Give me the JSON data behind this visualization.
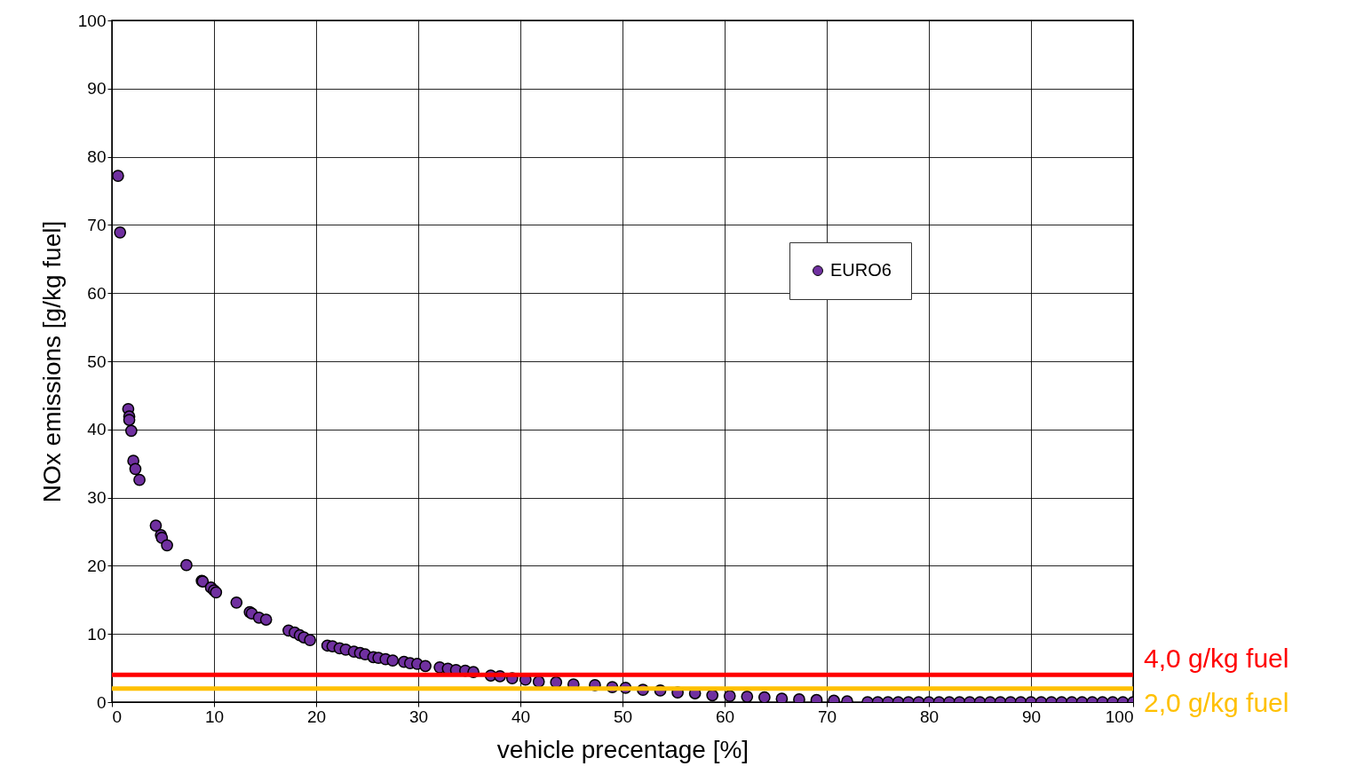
{
  "chart_data": {
    "type": "scatter",
    "xlabel": "vehicle precentage [%]",
    "ylabel": "NOx emissions [g/kg fuel]",
    "x": [
      0.6,
      0.8,
      1.6,
      1.7,
      1.7,
      1.9,
      2.1,
      2.3,
      2.7,
      4.3,
      4.8,
      4.9,
      5.4,
      7.3,
      8.8,
      8.9,
      9.7,
      10.0,
      10.2,
      12.2,
      13.5,
      13.7,
      14.4,
      15.1,
      17.3,
      17.9,
      18.4,
      18.8,
      19.4,
      21.1,
      21.6,
      22.3,
      22.9,
      23.7,
      24.3,
      24.8,
      25.6,
      26.1,
      26.8,
      27.5,
      28.6,
      29.2,
      29.9,
      30.7,
      32.1,
      32.9,
      33.7,
      34.6,
      35.4,
      37.1,
      38.0,
      39.2,
      40.5,
      41.8,
      43.5,
      45.2,
      47.3,
      49.0,
      50.3,
      52.0,
      53.7,
      55.4,
      57.1,
      58.8,
      60.5,
      62.2,
      63.9,
      65.6,
      67.3,
      69.0,
      70.7,
      72.0,
      74,
      75,
      76,
      77,
      78,
      79,
      80,
      81,
      82,
      83,
      84,
      85,
      86,
      87,
      88,
      89,
      90,
      91,
      92,
      93,
      94,
      95,
      96,
      97,
      98,
      99,
      100
    ],
    "series": [
      {
        "name": "EURO6",
        "color": "#7030a0",
        "values": [
          77.2,
          68.9,
          43.0,
          41.9,
          41.4,
          39.8,
          35.4,
          34.2,
          32.6,
          25.9,
          24.5,
          24.1,
          23.0,
          20.1,
          17.8,
          17.7,
          16.8,
          16.4,
          16.1,
          14.6,
          13.2,
          13.0,
          12.4,
          12.1,
          10.5,
          10.2,
          9.8,
          9.5,
          9.1,
          8.3,
          8.2,
          7.9,
          7.7,
          7.4,
          7.2,
          7.0,
          6.6,
          6.5,
          6.3,
          6.1,
          5.9,
          5.7,
          5.6,
          5.3,
          5.1,
          4.9,
          4.7,
          4.6,
          4.4,
          3.9,
          3.8,
          3.5,
          3.3,
          3.0,
          2.9,
          2.6,
          2.5,
          2.2,
          2.1,
          1.8,
          1.7,
          1.4,
          1.3,
          1.0,
          0.9,
          0.8,
          0.7,
          0.5,
          0.4,
          0.3,
          0.2,
          0.1,
          0,
          0,
          0,
          0,
          0,
          0,
          0,
          0,
          0,
          0,
          0,
          0,
          0,
          0,
          0,
          0,
          0,
          0,
          0,
          0,
          0,
          0,
          0,
          0,
          0,
          0,
          0
        ]
      }
    ],
    "xlim": [
      0,
      100
    ],
    "xticks": [
      0,
      10,
      20,
      30,
      40,
      50,
      60,
      70,
      80,
      90,
      100
    ],
    "ylim": [
      0,
      100
    ],
    "yticks": [
      0,
      10,
      20,
      30,
      40,
      50,
      60,
      70,
      80,
      90,
      100
    ],
    "ref_lines": [
      {
        "axis": "y",
        "value": 4,
        "label": "4,0 g/kg fuel",
        "color": "#ff0000"
      },
      {
        "axis": "y",
        "value": 2,
        "label": "2,0 g/kg fuel",
        "color": "#ffc000"
      }
    ],
    "grid": true,
    "legend": "top right",
    "marker": "circle"
  }
}
